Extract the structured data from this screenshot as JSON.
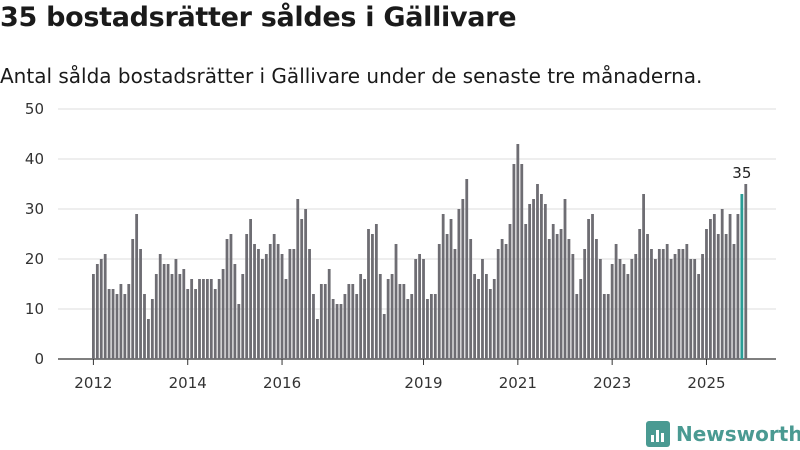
{
  "page": {
    "title": "35 bostadsrätter såldes i Gällivare",
    "subtitle": "Antal sålda bostadsrätter i Gällivare under de senaste tre månaderna."
  },
  "brand": {
    "name": "Newsworthy",
    "icon": "newsworthy-logo-icon",
    "color": "#4a9a92"
  },
  "chart_data": {
    "type": "bar",
    "title": "35 bostadsrätter såldes i Gällivare",
    "subtitle": "Antal sålda bostadsrätter i Gällivare under de senaste tre månaderna.",
    "xlabel": "",
    "ylabel": "",
    "ylim": [
      0,
      50
    ],
    "yticks": [
      0,
      10,
      20,
      30,
      40,
      50
    ],
    "xtick_labels": [
      "2012",
      "2014",
      "2016",
      "2019",
      "2021",
      "2023",
      "2025"
    ],
    "xtick_index": [
      0,
      24,
      48,
      84,
      108,
      132,
      156
    ],
    "grid": true,
    "bar_color": "#6e6d73",
    "highlight_color": "#2a9d96",
    "highlight_index": 165,
    "highlight_label": "35",
    "values": [
      17,
      19,
      20,
      21,
      14,
      14,
      13,
      15,
      13,
      15,
      24,
      29,
      22,
      13,
      8,
      12,
      17,
      21,
      19,
      19,
      17,
      20,
      17,
      18,
      14,
      16,
      14,
      16,
      16,
      16,
      16,
      14,
      16,
      18,
      24,
      25,
      19,
      11,
      17,
      25,
      28,
      23,
      22,
      20,
      21,
      23,
      25,
      23,
      21,
      16,
      22,
      22,
      32,
      28,
      30,
      22,
      13,
      8,
      15,
      15,
      18,
      12,
      11,
      11,
      13,
      15,
      15,
      13,
      17,
      16,
      26,
      25,
      27,
      17,
      9,
      16,
      17,
      23,
      15,
      15,
      12,
      13,
      20,
      21,
      20,
      12,
      13,
      13,
      23,
      29,
      25,
      28,
      22,
      30,
      32,
      36,
      24,
      17,
      16,
      20,
      17,
      14,
      16,
      22,
      24,
      23,
      27,
      39,
      43,
      39,
      27,
      31,
      32,
      35,
      33,
      31,
      24,
      27,
      25,
      26,
      32,
      24,
      21,
      13,
      16,
      22,
      28,
      29,
      24,
      20,
      13,
      13,
      19,
      23,
      20,
      19,
      17,
      20,
      21,
      26,
      33,
      25,
      22,
      20,
      22,
      22,
      23,
      20,
      21,
      22,
      22,
      23,
      20,
      20,
      17,
      21,
      26,
      28,
      29,
      25,
      30,
      25,
      29,
      23,
      29,
      33,
      35
    ]
  }
}
